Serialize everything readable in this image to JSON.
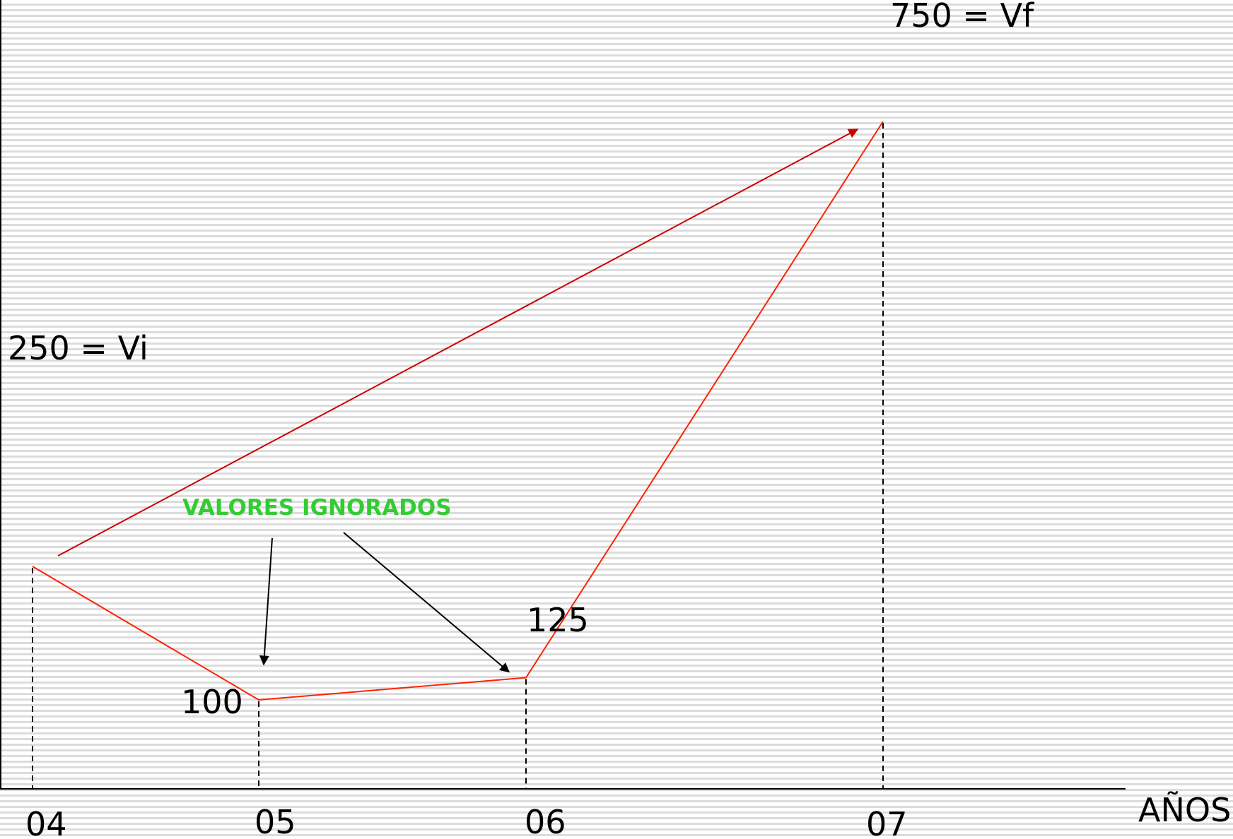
{
  "chart_data": {
    "type": "line",
    "categories": [
      "04",
      "05",
      "06",
      "07"
    ],
    "series": [
      {
        "values": [
          250,
          100,
          125,
          750
        ]
      }
    ],
    "point_labels": [
      "250 = Vi",
      "100",
      "125",
      "750 = Vf"
    ],
    "xlabel": "AÑOS",
    "ylabel": "",
    "title": "",
    "ylim": [
      0,
      750
    ],
    "grid": false,
    "annotation": {
      "text": "VALORES IGNORADOS",
      "targets": [
        "05",
        "06"
      ]
    },
    "direct_arrow": {
      "from": "04",
      "to": "07"
    },
    "colors": {
      "series_line": "#ff2200",
      "direct_arrow": "#cc0000",
      "annotation": "#33cc33",
      "axis": "#000000"
    }
  }
}
